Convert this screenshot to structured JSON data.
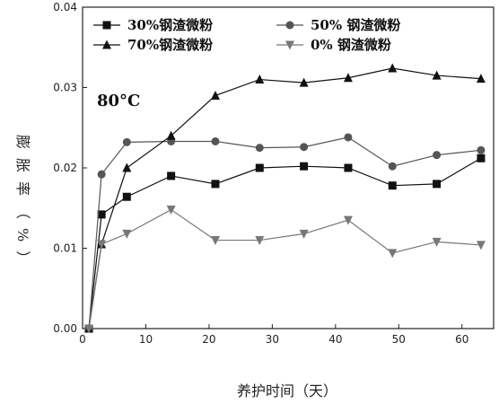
{
  "chart_data": {
    "type": "line",
    "title": "",
    "annotation": "80°C",
    "xlabel": "养护时间（天）",
    "ylabel": "膨胀率（%）",
    "xlim": [
      0,
      65
    ],
    "ylim": [
      0,
      0.04
    ],
    "xticks": [
      "0",
      "10",
      "20",
      "30",
      "40",
      "50",
      "60"
    ],
    "yticks": [
      "0.00",
      "0.01",
      "0.02",
      "0.03",
      "0.04"
    ],
    "legend_position": "top",
    "x": [
      1,
      3,
      7,
      14,
      21,
      28,
      35,
      42,
      49,
      56,
      63
    ],
    "series": [
      {
        "name": "30%钢渣微粉",
        "marker": "square",
        "color": "#111111",
        "values": [
          0.0,
          0.0142,
          0.0164,
          0.019,
          0.018,
          0.02,
          0.0202,
          0.02,
          0.0178,
          0.018,
          0.0212
        ]
      },
      {
        "name": "50%  钢渣微粉",
        "marker": "circle",
        "color": "#555555",
        "values": [
          0.0,
          0.0192,
          0.0232,
          0.0233,
          0.0233,
          0.0225,
          0.0226,
          0.0238,
          0.0202,
          0.0216,
          0.0222
        ]
      },
      {
        "name": "70%钢渣微粉",
        "marker": "triangle-up",
        "color": "#111111",
        "values": [
          0.0,
          0.0105,
          0.02,
          0.024,
          0.029,
          0.031,
          0.0306,
          0.0312,
          0.0324,
          0.0315,
          0.0311
        ]
      },
      {
        "name": "0%   钢渣微粉",
        "marker": "triangle-down",
        "color": "#777777",
        "values": [
          0.0,
          0.0105,
          0.0118,
          0.0148,
          0.011,
          0.011,
          0.0118,
          0.0135,
          0.0094,
          0.0108,
          0.0104
        ]
      }
    ]
  }
}
